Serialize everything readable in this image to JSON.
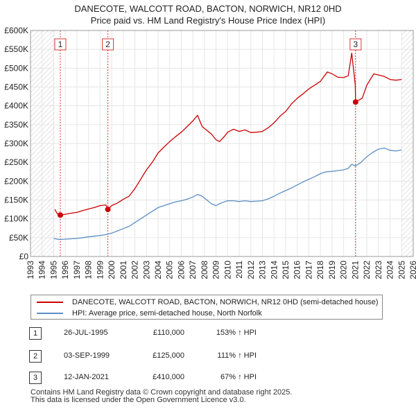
{
  "chart_data": {
    "type": "line",
    "title": "DANECOTE, WALCOTT ROAD, BACTON, NORWICH, NR12 0HD",
    "subtitle": "Price paid vs. HM Land Registry's House Price Index (HPI)",
    "xlim": [
      1993,
      2026
    ],
    "ylim": [
      0,
      600000
    ],
    "x_ticks": [
      "1993",
      "1994",
      "1995",
      "1996",
      "1997",
      "1998",
      "1999",
      "2000",
      "2001",
      "2002",
      "2003",
      "2004",
      "2005",
      "2006",
      "2007",
      "2008",
      "2009",
      "2010",
      "2011",
      "2012",
      "2013",
      "2014",
      "2015",
      "2016",
      "2017",
      "2018",
      "2019",
      "2020",
      "2021",
      "2022",
      "2023",
      "2024",
      "2025",
      "2026"
    ],
    "y_ticks": [
      {
        "value": 0,
        "label": "£0"
      },
      {
        "value": 50000,
        "label": "£50K"
      },
      {
        "value": 100000,
        "label": "£100K"
      },
      {
        "value": 150000,
        "label": "£150K"
      },
      {
        "value": 200000,
        "label": "£200K"
      },
      {
        "value": 250000,
        "label": "£250K"
      },
      {
        "value": 300000,
        "label": "£300K"
      },
      {
        "value": 350000,
        "label": "£350K"
      },
      {
        "value": 400000,
        "label": "£400K"
      },
      {
        "value": 450000,
        "label": "£450K"
      },
      {
        "value": 500000,
        "label": "£500K"
      },
      {
        "value": 550000,
        "label": "£550K"
      },
      {
        "value": 600000,
        "label": "£600K"
      }
    ],
    "hatched_ranges": [
      [
        1993,
        1995.1
      ],
      [
        2025.0,
        2026
      ]
    ],
    "series": [
      {
        "name": "DANECOTE, WALCOTT ROAD, BACTON, NORWICH, NR12 0HD (semi-detached house)",
        "color": "#cc0000",
        "x": [
          1995.1,
          1995.3,
          1995.57,
          1996.0,
          1996.5,
          1997.0,
          1997.5,
          1998.0,
          1998.5,
          1999.0,
          1999.5,
          1999.67,
          2000.0,
          2000.5,
          2001.0,
          2001.5,
          2002.0,
          2002.5,
          2003.0,
          2003.5,
          2004.0,
          2004.5,
          2005.0,
          2005.5,
          2006.0,
          2006.5,
          2007.0,
          2007.4,
          2007.8,
          2008.2,
          2008.6,
          2009.0,
          2009.3,
          2009.7,
          2010.0,
          2010.5,
          2011.0,
          2011.5,
          2012.0,
          2012.5,
          2013.0,
          2013.5,
          2014.0,
          2014.5,
          2015.0,
          2015.5,
          2016.0,
          2016.5,
          2017.0,
          2017.5,
          2018.0,
          2018.3,
          2018.6,
          2019.0,
          2019.5,
          2020.0,
          2020.4,
          2020.7,
          2021.0,
          2021.03,
          2021.3,
          2021.6,
          2022.0,
          2022.3,
          2022.6,
          2023.0,
          2023.5,
          2024.0,
          2024.5,
          2025.0
        ],
        "y": [
          125000,
          114000,
          110000,
          112000,
          115000,
          117000,
          122000,
          126000,
          130000,
          135000,
          137000,
          125000,
          135000,
          142000,
          152000,
          160000,
          180000,
          205000,
          230000,
          250000,
          275000,
          290000,
          305000,
          318000,
          330000,
          345000,
          360000,
          375000,
          345000,
          335000,
          325000,
          310000,
          305000,
          318000,
          330000,
          338000,
          332000,
          336000,
          329000,
          330000,
          332000,
          342000,
          355000,
          372000,
          385000,
          405000,
          420000,
          432000,
          445000,
          455000,
          465000,
          478000,
          490000,
          485000,
          476000,
          475000,
          480000,
          540000,
          455000,
          410000,
          415000,
          420000,
          455000,
          470000,
          485000,
          482000,
          478000,
          470000,
          468000,
          470000
        ]
      },
      {
        "name": "HPI: Average price, semi-detached house, North Norfolk",
        "color": "#5b8ec6",
        "x": [
          1995.0,
          1995.5,
          1996.0,
          1996.5,
          1997.0,
          1997.5,
          1998.0,
          1998.5,
          1999.0,
          1999.5,
          2000.0,
          2000.5,
          2001.0,
          2001.5,
          2002.0,
          2002.5,
          2003.0,
          2003.5,
          2004.0,
          2004.5,
          2005.0,
          2005.5,
          2006.0,
          2006.5,
          2007.0,
          2007.4,
          2007.8,
          2008.2,
          2008.6,
          2009.0,
          2009.3,
          2009.7,
          2010.0,
          2010.5,
          2011.0,
          2011.5,
          2012.0,
          2012.5,
          2013.0,
          2013.5,
          2014.0,
          2014.5,
          2015.0,
          2015.5,
          2016.0,
          2016.5,
          2017.0,
          2017.5,
          2018.0,
          2018.5,
          2019.0,
          2019.5,
          2020.0,
          2020.4,
          2020.7,
          2021.0,
          2021.5,
          2022.0,
          2022.5,
          2023.0,
          2023.5,
          2024.0,
          2024.5,
          2025.0
        ],
        "y": [
          48000,
          45000,
          46000,
          47000,
          48000,
          50000,
          52000,
          54000,
          56000,
          58000,
          62000,
          68000,
          74000,
          80000,
          90000,
          100000,
          110000,
          120000,
          130000,
          135000,
          140000,
          145000,
          148000,
          152000,
          158000,
          165000,
          160000,
          150000,
          140000,
          135000,
          140000,
          145000,
          148000,
          148000,
          146000,
          148000,
          146000,
          147000,
          148000,
          153000,
          160000,
          168000,
          175000,
          182000,
          190000,
          198000,
          205000,
          212000,
          220000,
          225000,
          226000,
          228000,
          230000,
          234000,
          245000,
          240000,
          250000,
          265000,
          276000,
          285000,
          288000,
          282000,
          280000,
          283000
        ]
      }
    ],
    "sales": [
      {
        "label": "1",
        "x": 1995.57,
        "y": 110000,
        "date": "26-JUL-1995",
        "price": "£110,000",
        "hpi": "153% ↑ HPI"
      },
      {
        "label": "2",
        "x": 1999.67,
        "y": 125000,
        "date": "03-SEP-1999",
        "price": "£125,000",
        "hpi": "111% ↑ HPI"
      },
      {
        "label": "3",
        "x": 2021.03,
        "y": 410000,
        "date": "12-JAN-2021",
        "price": "£410,000",
        "hpi": "67% ↑ HPI"
      }
    ]
  },
  "legend": {
    "property_label": "DANECOTE, WALCOTT ROAD, BACTON, NORWICH, NR12 0HD (semi-detached house)",
    "hpi_label": "HPI: Average price, semi-detached house, North Norfolk",
    "property_color": "#cc0000",
    "hpi_color": "#5b8ec6"
  },
  "footer": {
    "line1": "Contains HM Land Registry data © Crown copyright and database right 2025.",
    "line2": "This data is licensed under the Open Government Licence v3.0."
  }
}
